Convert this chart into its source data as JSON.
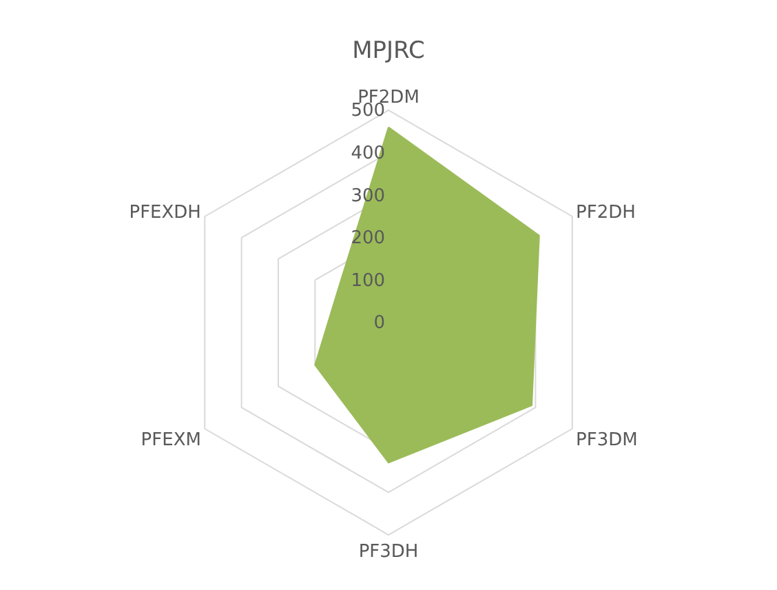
{
  "chart_data": {
    "type": "radar",
    "title": "MPJRC",
    "categories": [
      "PF2DM",
      "PF2DH",
      "PF3DM",
      "PF3DH",
      "PFEXM",
      "PFEXDH"
    ],
    "series": [
      {
        "color": "#9bbb59",
        "values": [
          460,
          410,
          390,
          330,
          200,
          140
        ]
      }
    ],
    "ylim": [
      0,
      500
    ],
    "yticks": [
      0,
      100,
      200,
      300,
      400,
      500
    ],
    "grid": true,
    "marker": "none"
  }
}
